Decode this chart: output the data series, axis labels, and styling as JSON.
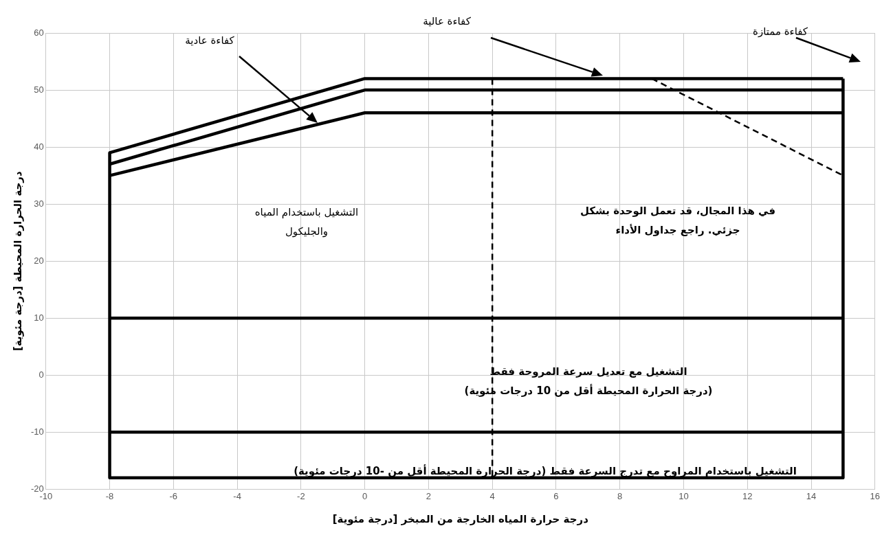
{
  "chart_data": {
    "type": "line",
    "xlabel": "درجة حرارة المياه الخارجة من المبخر [درجة مئوية]",
    "ylabel": "درجة الحرارة المحيطة [درجة مئوية]",
    "xlim": [
      -10,
      16
    ],
    "xticks": [
      -10,
      -8,
      -6,
      -4,
      -2,
      0,
      2,
      4,
      6,
      8,
      10,
      12,
      14,
      16
    ],
    "ylim": [
      -20,
      60
    ],
    "yticks": [
      -20,
      -10,
      0,
      10,
      20,
      30,
      40,
      50,
      60
    ],
    "grid": true,
    "legend": false,
    "marker": "none",
    "line_style": "solid",
    "series": [
      {
        "color": "#000000",
        "x": [
          -8,
          0,
          15
        ],
        "values": [
          39,
          52,
          52
        ]
      },
      {
        "color": "#000000",
        "x": [
          -8,
          0,
          15
        ],
        "values": [
          37,
          50,
          50
        ]
      },
      {
        "color": "#000000",
        "x": [
          -8,
          0,
          15
        ],
        "values": [
          35,
          46,
          46
        ]
      },
      {
        "color": "#000000",
        "x": [
          -8,
          -8,
          15,
          15
        ],
        "values": [
          39,
          -18,
          -18,
          52
        ]
      },
      {
        "color": "#000000",
        "x": [
          -8,
          15
        ],
        "values": [
          10,
          10
        ]
      },
      {
        "color": "#000000",
        "x": [
          -8,
          15
        ],
        "values": [
          -10,
          -10
        ]
      },
      {
        "color": "#000000",
        "x": [
          9,
          15
        ],
        "values": [
          52,
          35
        ],
        "line_style": "dashed"
      },
      {
        "color": "#000000",
        "x": [
          4,
          4
        ],
        "values": [
          52,
          -18
        ],
        "line_style": "dashed"
      }
    ],
    "annotations": [
      "كفاءة عادية",
      "كفاءة عالية",
      "كفاءة ممتازة",
      "التشغيل باستخدام المياه\nوالجليكول",
      "في هذا المجال، قد تعمل الوحدة بشكل\nجزئي. راجع جداول الأداء",
      "التشغيل مع تعديل سرعة المروحة فقط\n(درجة الحرارة المحيطة أقل من 10 درجات مئوية)",
      "التشغيل باستخدام المراوح مع تدرج السرعة فقط (درجة الحرارة المحيطة أقل من -10 درجات مئوية)"
    ]
  }
}
